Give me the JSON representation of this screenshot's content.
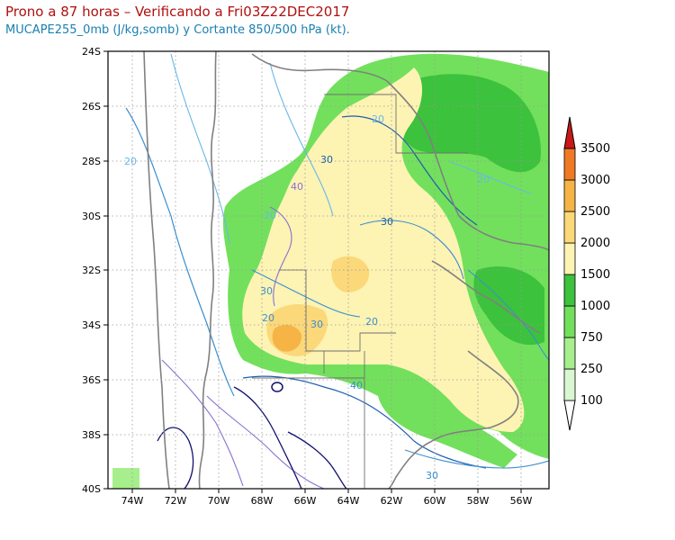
{
  "header": {
    "title": "Prono a 87 horas – Verificando a Fri03Z22DEC2017",
    "subtitle": "MUCAPE255_0mb (J/kg,somb) y Cortante 850/500 hPa (kt)."
  },
  "map": {
    "lat_labels": [
      "24S",
      "26S",
      "28S",
      "30S",
      "32S",
      "34S",
      "36S",
      "38S",
      "40S"
    ],
    "lon_labels": [
      "74W",
      "72W",
      "70W",
      "68W",
      "66W",
      "64W",
      "62W",
      "60W",
      "58W",
      "56W"
    ],
    "contour_labels": [
      "20",
      "20",
      "30",
      "20",
      "40",
      "30",
      "30",
      "20",
      "30",
      "20",
      "20",
      "40",
      "30"
    ],
    "colorbar": {
      "labels": [
        "100",
        "250",
        "750",
        "1000",
        "1500",
        "2000",
        "2500",
        "3000",
        "3500"
      ],
      "colors": [
        "#d9f7d0",
        "#a6ef8c",
        "#72e05c",
        "#3cc23c",
        "#fdf3b3",
        "#fbd87a",
        "#f5b445",
        "#f07a24",
        "#e33a1a",
        "#c81818"
      ]
    }
  }
}
